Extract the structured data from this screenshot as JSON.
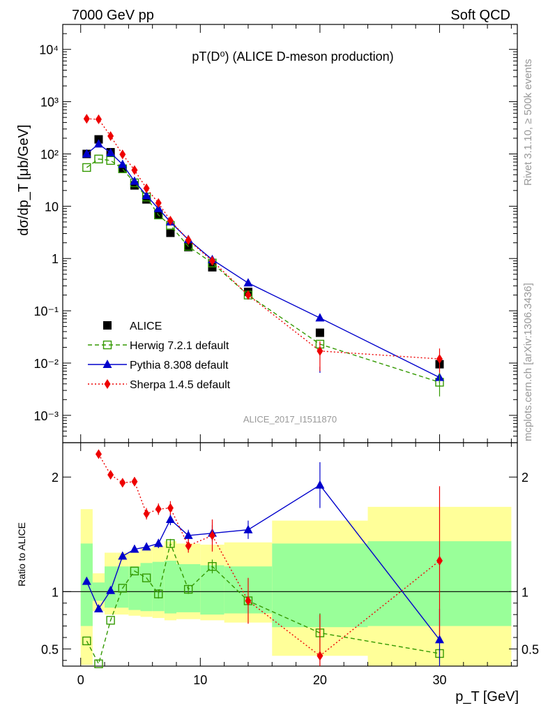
{
  "header": {
    "left": "7000 GeV pp",
    "right": "Soft QCD"
  },
  "side": {
    "rivet": "Rivet 3.1.10, ≥ 500k events",
    "mcplots": "mcplots.cern.ch [arXiv:1306.3436]"
  },
  "colors": {
    "data": "#000000",
    "herwig": "#339900",
    "pythia": "#0000cc",
    "sherpa": "#ee0000",
    "band_inner": "#99ff99",
    "band_outer": "#ffff99"
  },
  "chart_data": [
    {
      "type": "scatter",
      "panel": "main",
      "title": "pT(D⁰) (ALICE D-meson production)",
      "analysis_id": "ALICE_2017_I1511870",
      "ylabel": "dσ/dp_T [μb/GeV]",
      "xlabel": "p_T [GeV]",
      "y_scale": "log",
      "xlim": [
        -1.5,
        36.5
      ],
      "ylim": [
        0.0003,
        30000
      ],
      "x_ticks": [
        "0",
        "10",
        "20",
        "30"
      ],
      "y_ticks": [
        "10⁻³",
        "10⁻²",
        "10⁻¹",
        "1",
        "10",
        "10²",
        "10³",
        "10⁴"
      ],
      "legend_position": "lower-left",
      "series": [
        {
          "name": "ALICE",
          "key": "data",
          "marker": "filled-square",
          "x": [
            0.5,
            1.5,
            2.5,
            3.5,
            4.5,
            5.5,
            6.5,
            7.5,
            9,
            11,
            14,
            20,
            30
          ],
          "values": [
            100,
            190,
            108,
            52,
            25,
            13.5,
            7,
            3.1,
            1.65,
            0.68,
            0.23,
            0.038,
            0.0095
          ]
        },
        {
          "name": "Herwig 7.2.1 default",
          "key": "herwig",
          "marker": "open-square",
          "line": "dashed",
          "x": [
            0.5,
            1.5,
            2.5,
            3.5,
            4.5,
            5.5,
            6.5,
            7.5,
            9,
            11,
            14,
            20,
            30
          ],
          "values": [
            55,
            80,
            75,
            52,
            28,
            15,
            6.8,
            4.3,
            1.7,
            0.82,
            0.2,
            0.023,
            0.0043
          ]
        },
        {
          "name": "Pythia 8.308 default",
          "key": "pythia",
          "marker": "triangle",
          "line": "solid",
          "x": [
            0.5,
            1.5,
            2.5,
            3.5,
            4.5,
            5.5,
            6.5,
            7.5,
            9,
            11,
            14,
            20,
            30
          ],
          "values": [
            100,
            155,
            105,
            63,
            30,
            16,
            9,
            5,
            2.3,
            0.95,
            0.34,
            0.073,
            0.0053
          ]
        },
        {
          "name": "Sherpa 1.4.5 default",
          "key": "sherpa",
          "marker": "diamond",
          "line": "dotted",
          "x": [
            0.5,
            1.5,
            2.5,
            3.5,
            4.5,
            5.5,
            6.5,
            7.5,
            9,
            11,
            14,
            20,
            30
          ],
          "values": [
            470,
            460,
            220,
            98,
            49,
            22,
            11.5,
            5.3,
            2.25,
            0.9,
            0.2,
            0.017,
            0.012
          ]
        }
      ]
    },
    {
      "type": "scatter",
      "panel": "ratio",
      "ylabel": "Ratio to ALICE",
      "xlabel": "p_T [GeV]",
      "xlim": [
        -1.5,
        36.5
      ],
      "ylim": [
        0.35,
        2.3
      ],
      "y_ticks": [
        "0.5",
        "1",
        "2"
      ],
      "reference_line": 1,
      "band_edges": [
        0,
        1,
        2,
        3,
        4,
        5,
        6,
        7,
        8,
        10,
        12,
        16,
        24,
        36
      ],
      "band_inner": [
        [
          0.7,
          1.42
        ],
        [
          0.92,
          1.08
        ],
        [
          0.86,
          1.22
        ],
        [
          0.86,
          1.22
        ],
        [
          0.84,
          1.22
        ],
        [
          0.83,
          1.25
        ],
        [
          0.83,
          1.26
        ],
        [
          0.81,
          1.27
        ],
        [
          0.82,
          1.24
        ],
        [
          0.8,
          1.23
        ],
        [
          0.81,
          1.22
        ],
        [
          0.69,
          1.42
        ],
        [
          0.7,
          1.44
        ]
      ],
      "band_outer": [
        [
          0.36,
          1.72
        ],
        [
          0.83,
          1.16
        ],
        [
          0.8,
          1.34
        ],
        [
          0.8,
          1.34
        ],
        [
          0.79,
          1.35
        ],
        [
          0.78,
          1.38
        ],
        [
          0.77,
          1.4
        ],
        [
          0.75,
          1.44
        ],
        [
          0.76,
          1.42
        ],
        [
          0.75,
          1.41
        ],
        [
          0.73,
          1.43
        ],
        [
          0.44,
          1.62
        ],
        [
          0.33,
          1.74
        ]
      ],
      "series": [
        {
          "name": "Herwig 7.2.1 default",
          "key": "herwig",
          "x": [
            0.5,
            1.5,
            2.5,
            3.5,
            4.5,
            5.5,
            6.5,
            7.5,
            9,
            11,
            14,
            20,
            30
          ],
          "values": [
            0.57,
            0.37,
            0.75,
            1.03,
            1.18,
            1.12,
            0.98,
            1.42,
            1.02,
            1.22,
            0.92,
            0.64,
            0.46
          ],
          "errors": [
            0,
            0,
            0,
            0,
            0,
            0,
            0.04,
            0.04,
            0.04,
            0.06,
            0.04,
            0.17,
            0.05
          ]
        },
        {
          "name": "Pythia 8.308 default",
          "key": "pythia",
          "x": [
            0.5,
            1.5,
            2.5,
            3.5,
            4.5,
            5.5,
            6.5,
            7.5,
            9,
            11,
            14,
            20,
            30
          ],
          "values": [
            1.09,
            0.85,
            1.01,
            1.31,
            1.37,
            1.39,
            1.42,
            1.63,
            1.49,
            1.51,
            1.54,
            1.93,
            0.58
          ],
          "errors": [
            0,
            0,
            0,
            0,
            0,
            0,
            0.04,
            0.05,
            0.05,
            0.07,
            0.08,
            0.2,
            0.27
          ]
        },
        {
          "name": "Sherpa 1.4.5 default",
          "key": "sherpa",
          "x": [
            1.5,
            2.5,
            3.5,
            4.5,
            5.5,
            6.5,
            7.5,
            9,
            11,
            14,
            20,
            30
          ],
          "values": [
            2.2,
            2.02,
            1.95,
            1.96,
            1.68,
            1.72,
            1.73,
            1.4,
            1.49,
            0.92,
            0.44,
            1.27
          ],
          "errors": [
            0,
            0,
            0,
            0.04,
            0.05,
            0.05,
            0.06,
            0.06,
            0.14,
            0.2,
            0.36,
            0.65
          ]
        }
      ]
    }
  ]
}
